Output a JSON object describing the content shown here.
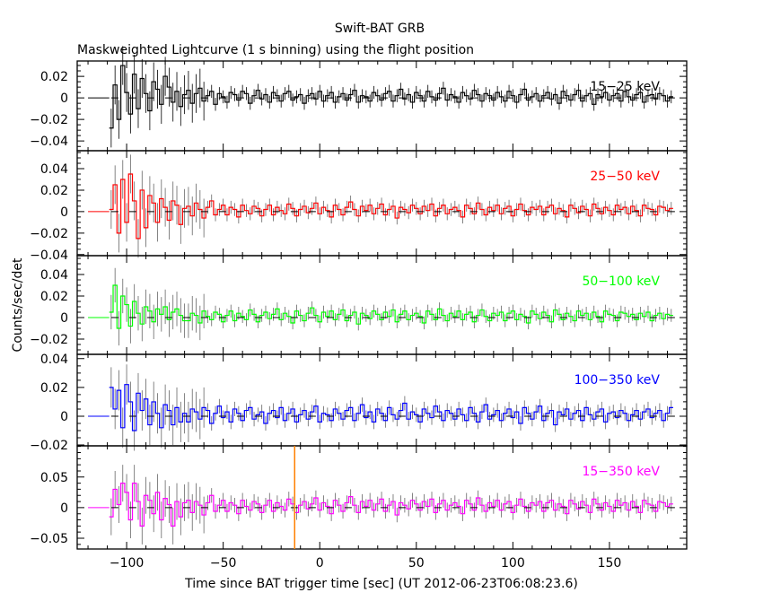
{
  "chart_data": {
    "type": "line",
    "title": "Swift-BAT GRB",
    "subtitle": "Maskweighted Lightcurve (1 s binning) using the flight position",
    "xlabel": "Time since BAT trigger time [sec] (UT 2012-06-23T06:08:23.6)",
    "ylabel": "Counts/sec/det",
    "xlim": [
      -125.6,
      190
    ],
    "xticks": [
      -100,
      -50,
      0,
      50,
      100,
      150
    ],
    "xtick_labels": [
      "−100",
      "−50",
      "0",
      "50",
      "100",
      "150"
    ],
    "marker_line": {
      "x": -13,
      "color": "#ff8000"
    },
    "pre_data_start": -120,
    "time_start": -108,
    "time_step": 2,
    "panels": [
      {
        "name": "15−25 keV",
        "color": "#000000",
        "ylim": [
          -0.049,
          0.0342
        ],
        "yticks": [
          -0.04,
          -0.02,
          0,
          0.02
        ],
        "ytick_labels": [
          "−0.04",
          "−0.02",
          "0",
          "0.02"
        ],
        "minor": 0.005,
        "error": 0.006,
        "error_early": 0.018,
        "values": [
          -0.028,
          0.012,
          -0.02,
          0.03,
          0.005,
          -0.015,
          0.022,
          -0.01,
          0.018,
          0.004,
          -0.012,
          0.015,
          0.008,
          -0.006,
          0.02,
          0.01,
          -0.004,
          0.006,
          -0.008,
          0.003,
          0.007,
          -0.005,
          0.004,
          0.009,
          -0.003,
          0.002,
          0.006,
          -0.006,
          0.004,
          0.001,
          -0.004,
          0.005,
          0.003,
          -0.002,
          0.006,
          0.004,
          -0.005,
          0.002,
          0.007,
          -0.001,
          0.003,
          -0.004,
          0.005,
          0.002,
          -0.003,
          0.004,
          0.006,
          -0.002,
          0.001,
          0.003,
          -0.005,
          0.002,
          0.004,
          -0.001,
          0.006,
          -0.003,
          0.002,
          0.005,
          -0.004,
          0.001,
          0.004,
          -0.002,
          0.003,
          0.007,
          -0.004,
          0.002,
          0.001,
          -0.003,
          0.005,
          0.002,
          -0.002,
          0.004,
          0.006,
          -0.003,
          0.002,
          0.008,
          -0.001,
          0.003,
          -0.004,
          0.005,
          0.002,
          -0.003,
          0.006,
          0.001,
          -0.002,
          0.004,
          0.009,
          -0.002,
          0.003,
          0.001,
          -0.004,
          0.005,
          0.002,
          -0.001,
          0.007,
          0.003,
          -0.003,
          0.004,
          0.002,
          -0.002,
          0.005,
          0.001,
          -0.003,
          0.006,
          0.002,
          -0.004,
          0.003,
          0.008,
          -0.002,
          0.001,
          0.004,
          -0.003,
          0.002,
          0.005,
          -0.001,
          0.003,
          -0.005,
          0.006,
          0.002,
          -0.002,
          0.003,
          0.007,
          -0.003,
          0.002,
          0.004,
          -0.006,
          0.003,
          0.001,
          0.005,
          -0.002,
          0.002,
          0.004,
          -0.003,
          0.006,
          0.001,
          -0.002,
          0.003,
          0.005,
          -0.004,
          0.002,
          0.003,
          -0.001,
          0.004,
          0.002,
          -0.003,
          0.001
        ]
      },
      {
        "name": "25−50 keV",
        "color": "#ff0000",
        "ylim": [
          -0.041,
          0.0567
        ],
        "yticks": [
          -0.04,
          -0.02,
          0,
          0.02,
          0.04
        ],
        "ytick_labels": [
          "−0.04",
          "−0.02",
          "0",
          "0.02",
          "0.04"
        ],
        "minor": 0.005,
        "error": 0.006,
        "error_early": 0.018,
        "values": [
          0.002,
          0.025,
          -0.02,
          0.03,
          -0.01,
          0.035,
          0.01,
          -0.025,
          0.02,
          -0.015,
          0.015,
          0.008,
          -0.01,
          0.012,
          0.004,
          -0.008,
          0.01,
          0.006,
          -0.012,
          0.003,
          0.005,
          -0.004,
          0.008,
          0.002,
          -0.006,
          0.004,
          0.01,
          -0.003,
          0.002,
          0.006,
          -0.003,
          0.004,
          0.002,
          -0.005,
          0.006,
          0.001,
          -0.002,
          0.005,
          0.003,
          -0.004,
          0.002,
          0.006,
          -0.003,
          0.004,
          0.001,
          -0.002,
          0.007,
          0.003,
          -0.004,
          0.002,
          0.005,
          -0.001,
          0.003,
          0.008,
          -0.002,
          0.004,
          0.001,
          -0.005,
          0.006,
          0.002,
          -0.003,
          0.004,
          0.009,
          0.002,
          -0.004,
          0.005,
          0.001,
          0.006,
          -0.002,
          0.003,
          0.007,
          -0.003,
          0.002,
          0.005,
          -0.006,
          0.004,
          0.002,
          -0.001,
          0.006,
          0.003,
          -0.002,
          0.005,
          0.001,
          0.007,
          -0.004,
          0.003,
          0.006,
          -0.002,
          0.002,
          0.004,
          0.001,
          -0.005,
          0.006,
          0.003,
          -0.002,
          0.008,
          0.002,
          -0.003,
          0.004,
          0.001,
          0.006,
          -0.002,
          0.003,
          0.005,
          -0.004,
          0.002,
          0.007,
          0.001,
          -0.003,
          0.004,
          0.002,
          0.005,
          -0.003,
          0.004,
          0.006,
          -0.002,
          0.003,
          0.001,
          -0.005,
          0.006,
          0.003,
          -0.001,
          0.005,
          0.002,
          -0.004,
          0.007,
          0.003,
          -0.002,
          0.004,
          0.001,
          -0.003,
          0.006,
          0.002,
          0.004,
          -0.002,
          0.005,
          0.001,
          -0.004,
          0.006,
          0.003,
          0.002,
          -0.003,
          0.005,
          0.004,
          0.001,
          0.003
        ]
      },
      {
        "name": "50−100 keV",
        "color": "#00ff00",
        "ylim": [
          -0.0342,
          0.0575
        ],
        "yticks": [
          -0.02,
          0,
          0.02,
          0.04
        ],
        "ytick_labels": [
          "−0.02",
          "0",
          "0.02",
          "0.04"
        ],
        "minor": 0.005,
        "error": 0.006,
        "error_early": 0.016,
        "values": [
          0.005,
          0.03,
          -0.01,
          0.02,
          0.012,
          -0.008,
          0.015,
          0.004,
          -0.006,
          0.01,
          0.006,
          -0.004,
          0.008,
          0.003,
          0.01,
          -0.002,
          0.005,
          0.008,
          0.002,
          -0.003,
          -0.003,
          0.004,
          0.002,
          -0.005,
          0.006,
          0.001,
          -0.002,
          0.005,
          0.003,
          -0.004,
          0.002,
          0.006,
          -0.003,
          0.004,
          0.001,
          -0.002,
          0.007,
          0.003,
          -0.004,
          0.002,
          0.005,
          -0.001,
          0.003,
          0.008,
          -0.002,
          0.004,
          0.001,
          -0.005,
          0.006,
          0.002,
          -0.003,
          0.004,
          0.009,
          0.002,
          -0.004,
          0.005,
          0.001,
          0.006,
          -0.002,
          0.003,
          0.007,
          -0.003,
          0.002,
          0.005,
          -0.006,
          0.004,
          0.002,
          -0.001,
          0.006,
          0.003,
          -0.002,
          0.005,
          0.001,
          0.007,
          -0.004,
          0.003,
          0.006,
          -0.002,
          0.002,
          0.004,
          0.001,
          -0.005,
          0.006,
          0.003,
          -0.002,
          0.008,
          0.002,
          -0.003,
          0.004,
          0.001,
          0.006,
          -0.002,
          0.003,
          0.005,
          -0.004,
          0.002,
          0.007,
          0.001,
          -0.003,
          0.004,
          0.002,
          0.005,
          -0.003,
          0.004,
          0.006,
          -0.002,
          0.003,
          0.001,
          -0.005,
          0.006,
          0.003,
          -0.001,
          0.005,
          0.002,
          -0.004,
          0.007,
          0.003,
          -0.002,
          0.004,
          0.001,
          -0.003,
          0.006,
          0.002,
          0.004,
          -0.002,
          0.005,
          0.001,
          -0.004,
          0.006,
          0.003,
          0.002,
          -0.003,
          0.005,
          0.004,
          0.001,
          0.003,
          -0.002,
          0.004,
          0.001,
          0.005,
          -0.003,
          0.002,
          0.004,
          -0.001,
          0.003,
          0.002
        ]
      },
      {
        "name": "100−350 keV",
        "color": "#0000ff",
        "ylim": [
          -0.0206,
          0.043
        ],
        "yticks": [
          -0.02,
          0,
          0.02,
          0.04
        ],
        "ytick_labels": [
          "−0.02",
          "0",
          "0.02",
          "0.04"
        ],
        "minor": 0.005,
        "error": 0.005,
        "error_early": 0.014,
        "values": [
          0.02,
          0.005,
          0.018,
          -0.008,
          0.022,
          0.01,
          -0.01,
          0.016,
          0.004,
          0.012,
          -0.006,
          0.01,
          0.002,
          -0.008,
          0.008,
          0.004,
          -0.006,
          0.006,
          -0.004,
          0.002,
          -0.004,
          0.005,
          0.003,
          -0.002,
          0.006,
          0.004,
          -0.005,
          0.002,
          0.007,
          -0.001,
          0.003,
          -0.004,
          0.005,
          0.002,
          -0.003,
          0.004,
          0.006,
          -0.002,
          0.001,
          0.003,
          -0.005,
          0.002,
          0.004,
          -0.001,
          0.006,
          -0.003,
          0.002,
          0.005,
          -0.004,
          0.001,
          0.004,
          -0.002,
          0.003,
          0.007,
          -0.004,
          0.002,
          0.001,
          -0.003,
          0.005,
          0.002,
          -0.002,
          0.004,
          0.006,
          -0.003,
          0.002,
          0.008,
          -0.001,
          0.003,
          -0.004,
          0.005,
          0.002,
          -0.003,
          0.006,
          0.001,
          -0.002,
          0.004,
          0.009,
          -0.002,
          0.003,
          0.001,
          -0.004,
          0.005,
          0.002,
          -0.001,
          0.007,
          0.003,
          -0.003,
          0.004,
          0.002,
          -0.002,
          0.005,
          0.001,
          -0.003,
          0.006,
          0.002,
          -0.004,
          0.003,
          0.008,
          -0.002,
          0.001,
          0.004,
          -0.003,
          0.002,
          0.005,
          -0.001,
          0.003,
          -0.005,
          0.006,
          0.002,
          -0.002,
          0.003,
          0.007,
          -0.003,
          0.002,
          0.004,
          -0.006,
          0.003,
          0.001,
          0.005,
          -0.002,
          0.002,
          0.004,
          -0.003,
          0.006,
          0.001,
          -0.002,
          0.003,
          0.005,
          -0.004,
          0.002,
          0.003,
          -0.001,
          0.004,
          0.002,
          -0.003,
          0.001,
          0.004,
          -0.002,
          0.003,
          0.005,
          -0.001,
          0.002,
          0.004,
          -0.003,
          0.002,
          0.006
        ]
      },
      {
        "name": "15−350 keV",
        "color": "#ff00ff",
        "ylim": [
          -0.0676,
          0.101
        ],
        "yticks": [
          -0.05,
          0,
          0.05
        ],
        "ytick_labels": [
          "−0.05",
          "0",
          "0.05"
        ],
        "minor": 0.01,
        "error": 0.012,
        "error_early": 0.03,
        "values": [
          -0.015,
          0.03,
          0.005,
          0.04,
          0.025,
          -0.02,
          0.04,
          0.01,
          -0.03,
          0.02,
          0.012,
          -0.01,
          0.025,
          -0.02,
          0.015,
          0.005,
          -0.03,
          0.01,
          -0.015,
          0.008,
          0.012,
          -0.008,
          0.01,
          0.004,
          -0.012,
          0.008,
          0.02,
          -0.006,
          0.004,
          0.012,
          -0.006,
          0.008,
          0.004,
          -0.01,
          0.012,
          0.002,
          -0.004,
          0.01,
          0.006,
          -0.008,
          0.004,
          0.012,
          -0.006,
          0.008,
          0.002,
          -0.004,
          0.014,
          0.006,
          -0.008,
          0.004,
          0.01,
          -0.002,
          0.006,
          0.016,
          -0.004,
          0.008,
          0.002,
          -0.01,
          0.012,
          0.004,
          -0.006,
          0.008,
          0.018,
          0.004,
          -0.008,
          0.01,
          0.002,
          0.012,
          -0.004,
          0.006,
          0.014,
          -0.006,
          0.004,
          0.01,
          -0.012,
          0.008,
          0.004,
          -0.002,
          0.012,
          0.006,
          -0.004,
          0.01,
          0.002,
          0.014,
          -0.008,
          0.006,
          0.012,
          -0.004,
          0.004,
          0.008,
          0.002,
          -0.01,
          0.012,
          0.006,
          -0.004,
          0.016,
          0.004,
          -0.006,
          0.008,
          0.002,
          0.012,
          -0.004,
          0.006,
          0.01,
          -0.008,
          0.004,
          0.014,
          0.002,
          -0.006,
          0.008,
          0.004,
          0.01,
          -0.006,
          0.008,
          0.012,
          -0.004,
          0.006,
          0.002,
          -0.01,
          0.012,
          0.006,
          -0.002,
          0.01,
          0.004,
          -0.008,
          0.014,
          0.006,
          -0.004,
          0.008,
          0.002,
          -0.006,
          0.012,
          0.004,
          0.008,
          -0.004,
          0.01,
          0.002,
          -0.008,
          0.012,
          0.006,
          0.004,
          -0.006,
          0.01,
          0.008,
          0.002,
          0.006
        ]
      }
    ]
  }
}
